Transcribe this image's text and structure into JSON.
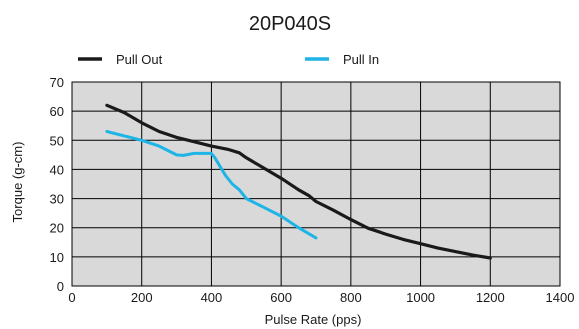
{
  "chart_data": {
    "type": "line",
    "title": "20P040S",
    "xlabel": "Pulse Rate (pps)",
    "ylabel": "Torque (g-cm)",
    "xlim": [
      0,
      1400
    ],
    "ylim": [
      0,
      70
    ],
    "x_ticks": [
      "0",
      "200",
      "400",
      "600",
      "800",
      "1000",
      "1200",
      "1400"
    ],
    "y_ticks": [
      "0",
      "10",
      "20",
      "30",
      "40",
      "50",
      "60",
      "70"
    ],
    "grid": true,
    "legend_position": "top",
    "plot_background": "#d9d9d9",
    "series": [
      {
        "name": "Pull Out",
        "color": "#1a1a1a",
        "x": [
          100,
          150,
          200,
          250,
          300,
          350,
          400,
          450,
          480,
          500,
          550,
          600,
          650,
          680,
          700,
          750,
          800,
          850,
          900,
          950,
          1000,
          1050,
          1100,
          1150,
          1200
        ],
        "y": [
          62,
          59.5,
          56,
          53,
          51,
          49.5,
          48,
          46.8,
          45.7,
          44,
          40.5,
          37,
          33,
          31,
          29,
          26,
          22.8,
          19.8,
          17.8,
          16,
          14.5,
          13,
          11.8,
          10.6,
          9.6
        ]
      },
      {
        "name": "Pull In",
        "color": "#1fb4e6",
        "x": [
          100,
          150,
          200,
          250,
          300,
          320,
          350,
          400,
          410,
          425,
          440,
          460,
          480,
          500,
          550,
          600,
          650,
          700
        ],
        "y": [
          53,
          51.5,
          50,
          48,
          45,
          44.8,
          45.5,
          45.5,
          44,
          41,
          38,
          35,
          33,
          30,
          27,
          24,
          20,
          16.5
        ]
      }
    ]
  }
}
